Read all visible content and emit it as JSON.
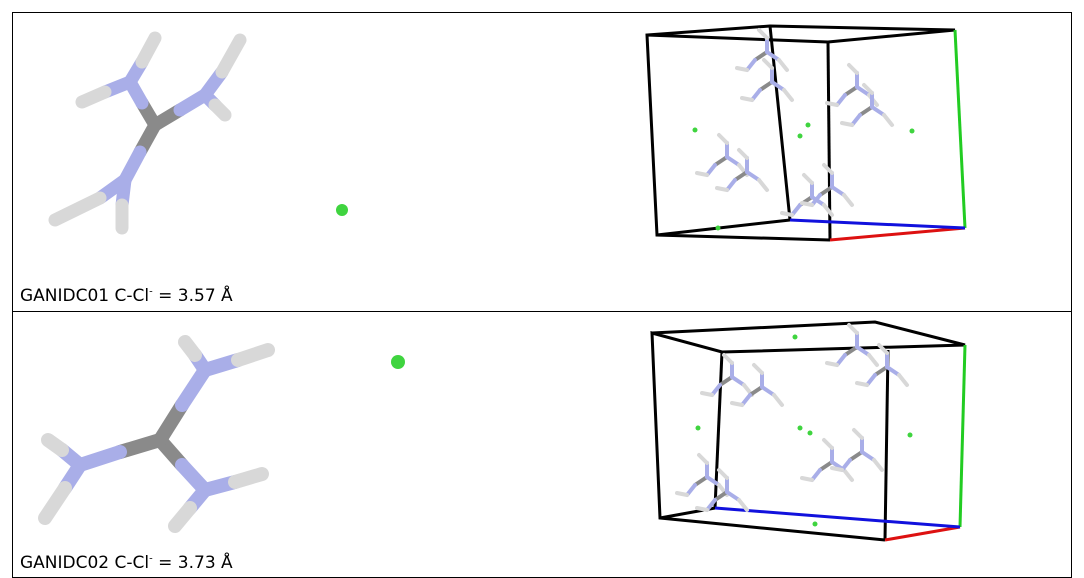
{
  "rows": [
    {
      "caption": {
        "label": "GANIDC01 C-Cl",
        "charge": "-",
        "distance": "= 3.57 Å"
      }
    },
    {
      "caption": {
        "label": "GANIDC02 C-Cl",
        "charge": "-",
        "distance": "= 3.73 Å"
      }
    }
  ]
}
